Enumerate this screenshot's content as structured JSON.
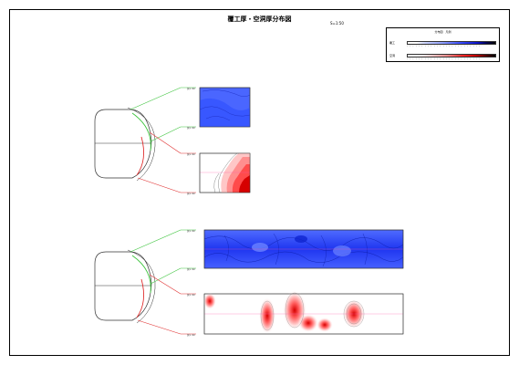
{
  "title": "覆工厚・空洞厚分布図",
  "scale": "S=1:50",
  "legend": {
    "title": "分布図　凡例",
    "row1_label": "覆工",
    "row2_label": "空洞"
  },
  "colors": {
    "blue_light": "#7f96ff",
    "blue_mid": "#3557ff",
    "blue_dark": "#0d2ad9",
    "red_light": "#ffd2d2",
    "red_mid": "#ff7a7a",
    "red_dark": "#d60000",
    "green_line": "#3cc43c",
    "red_line": "#e03030",
    "section_outline": "#333333"
  },
  "side_labels": {
    "upper_top": "測 L 90",
    "upper_mid": "測 L 90",
    "upper_lower": "測 L 90",
    "upper_bottom": "測 L 90",
    "lower_top": "測 L 90",
    "lower_mid": "測 L 90",
    "lower_lower": "測 L 90",
    "lower_bottom": "測 L 90"
  }
}
